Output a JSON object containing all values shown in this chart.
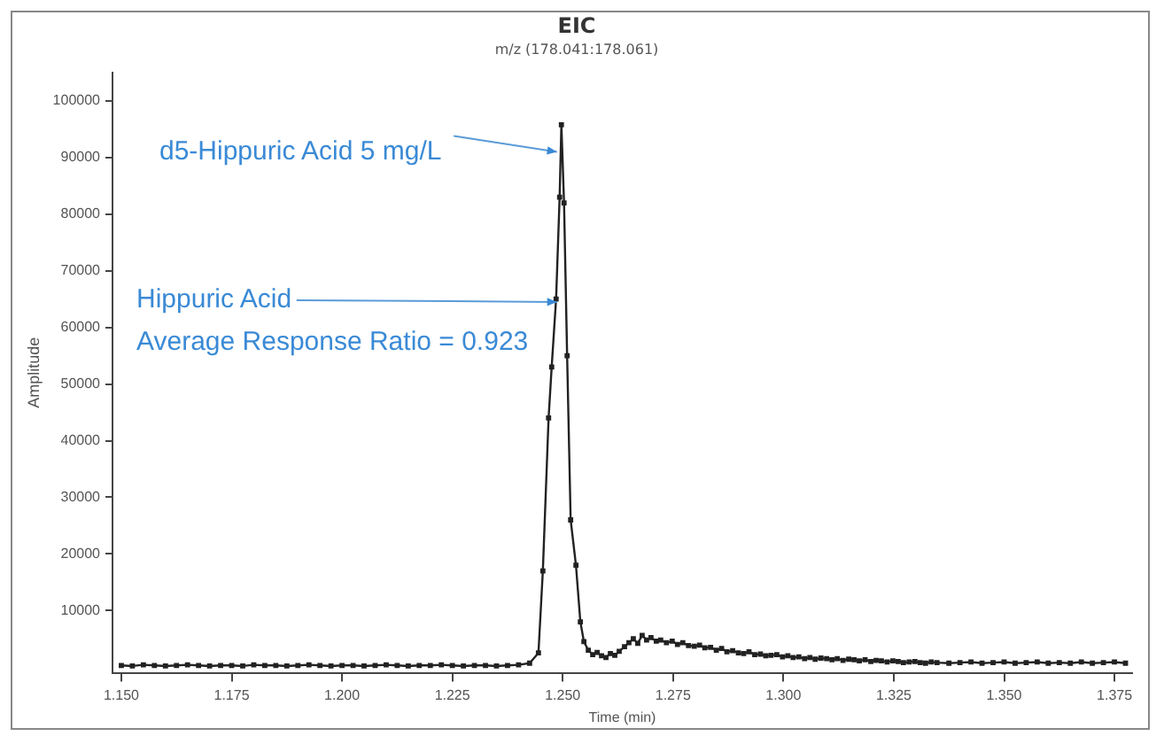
{
  "chart_data": {
    "type": "line",
    "title": "EIC",
    "subtitle": "m/z (178.041:178.061)",
    "xlabel": "Time (min)",
    "ylabel": "Amplitude",
    "xlim": [
      1.148,
      1.379
    ],
    "ylim": [
      -1000,
      105000
    ],
    "xticks": [
      {
        "value": 1.15,
        "label": "1.150"
      },
      {
        "value": 1.175,
        "label": "1.175"
      },
      {
        "value": 1.2,
        "label": "1.200"
      },
      {
        "value": 1.225,
        "label": "1.225"
      },
      {
        "value": 1.25,
        "label": "1.250"
      },
      {
        "value": 1.275,
        "label": "1.275"
      },
      {
        "value": 1.3,
        "label": "1.300"
      },
      {
        "value": 1.325,
        "label": "1.325"
      },
      {
        "value": 1.35,
        "label": "1.350"
      },
      {
        "value": 1.375,
        "label": "1.375"
      }
    ],
    "yticks": [
      10000,
      20000,
      30000,
      40000,
      50000,
      60000,
      70000,
      80000,
      90000,
      100000
    ],
    "grid": false,
    "legend": false,
    "marker": "square",
    "line_style": "solid",
    "annotations": [
      {
        "text": "d5-Hippuric Acid 5 mg/L",
        "x": 1.2495,
        "y": 91000
      },
      {
        "text": "Hippuric Acid",
        "x": 1.2495,
        "y": 64500
      },
      "Average Response Ratio = 0.923"
    ],
    "series": [
      {
        "color": "#222222",
        "x": [
          1.15,
          1.1525,
          1.155,
          1.1575,
          1.16,
          1.1625,
          1.165,
          1.1675,
          1.17,
          1.1725,
          1.175,
          1.1775,
          1.18,
          1.1825,
          1.185,
          1.1875,
          1.19,
          1.1925,
          1.195,
          1.1975,
          1.2,
          1.2025,
          1.205,
          1.2075,
          1.21,
          1.2125,
          1.215,
          1.2175,
          1.22,
          1.2225,
          1.225,
          1.2275,
          1.23,
          1.2325,
          1.235,
          1.2375,
          1.24,
          1.2425,
          1.2445,
          1.2455,
          1.2468,
          1.2475,
          1.2485,
          1.2493,
          1.2497,
          1.2503,
          1.251,
          1.2518,
          1.253,
          1.254,
          1.2548,
          1.2558,
          1.2568,
          1.2578,
          1.2588,
          1.2598,
          1.2608,
          1.2618,
          1.2628,
          1.264,
          1.265,
          1.266,
          1.267,
          1.268,
          1.269,
          1.27,
          1.2712,
          1.2722,
          1.2735,
          1.2748,
          1.276,
          1.2772,
          1.2785,
          1.2798,
          1.281,
          1.2822,
          1.2835,
          1.2848,
          1.286,
          1.2872,
          1.2885,
          1.2898,
          1.291,
          1.2922,
          1.2935,
          1.2948,
          1.296,
          1.2972,
          1.2985,
          1.2998,
          1.301,
          1.3022,
          1.3035,
          1.3048,
          1.306,
          1.3072,
          1.3085,
          1.3098,
          1.311,
          1.3122,
          1.3135,
          1.3148,
          1.316,
          1.3172,
          1.3185,
          1.3198,
          1.321,
          1.3222,
          1.3235,
          1.3248,
          1.326,
          1.3272,
          1.3285,
          1.3298,
          1.331,
          1.3322,
          1.3335,
          1.3348,
          1.3375,
          1.34,
          1.3425,
          1.345,
          1.3475,
          1.35,
          1.3525,
          1.355,
          1.3575,
          1.36,
          1.3625,
          1.365,
          1.3675,
          1.37,
          1.3725,
          1.375,
          1.3775
        ],
        "values": [
          300,
          200,
          400,
          300,
          200,
          300,
          400,
          300,
          200,
          300,
          300,
          200,
          400,
          300,
          300,
          200,
          300,
          400,
          300,
          200,
          300,
          300,
          200,
          300,
          400,
          300,
          200,
          300,
          300,
          400,
          300,
          200,
          300,
          300,
          200,
          300,
          400,
          700,
          2500,
          17000,
          44000,
          53000,
          65000,
          83000,
          95800,
          82000,
          55000,
          26000,
          18000,
          8000,
          4500,
          3000,
          2200,
          2600,
          2000,
          1700,
          2400,
          2100,
          2800,
          3600,
          4300,
          5000,
          4200,
          5600,
          4800,
          5200,
          4600,
          4800,
          4300,
          4600,
          4000,
          4300,
          3800,
          3700,
          3900,
          3400,
          3500,
          3000,
          3300,
          2700,
          2900,
          2500,
          2400,
          2700,
          2200,
          2300,
          2000,
          2100,
          2200,
          1800,
          2000,
          1700,
          1800,
          1500,
          1700,
          1400,
          1600,
          1500,
          1300,
          1500,
          1200,
          1400,
          1300,
          1100,
          1300,
          1000,
          1200,
          1100,
          900,
          1100,
          1000,
          800,
          900,
          1000,
          800,
          700,
          900,
          800,
          700,
          800,
          900,
          700,
          800,
          900,
          700,
          800,
          900,
          700,
          800,
          700,
          900,
          700,
          800,
          900,
          700
        ]
      }
    ]
  }
}
